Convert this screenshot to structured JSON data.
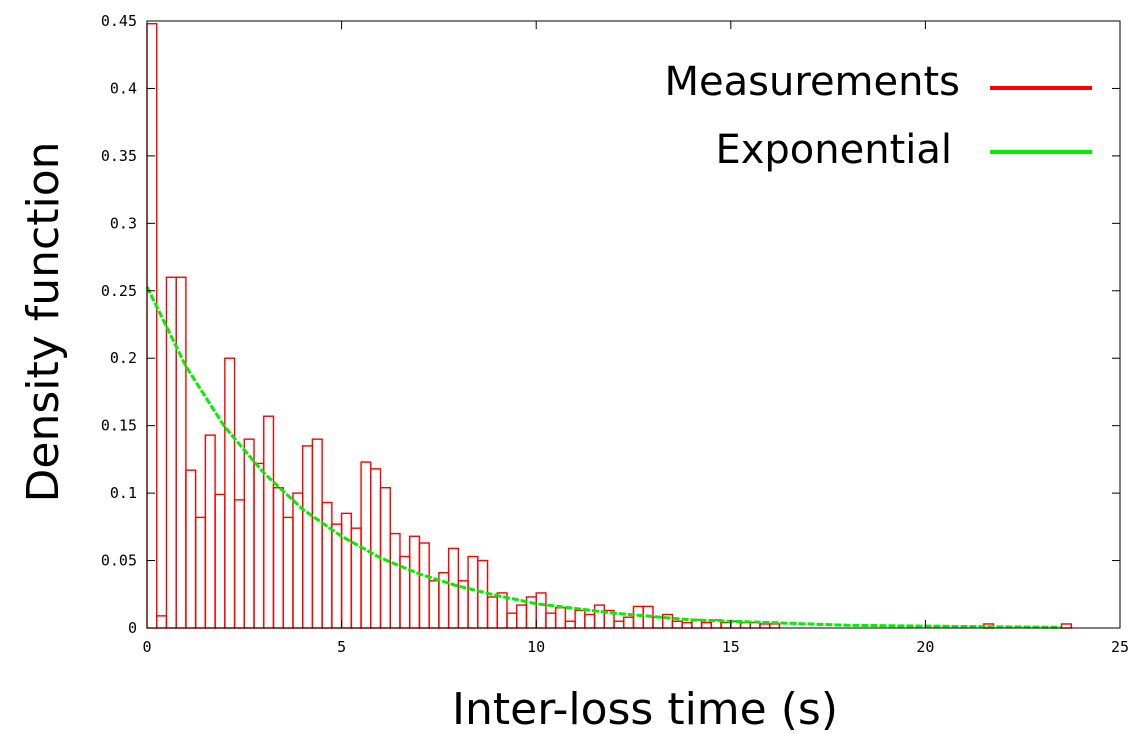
{
  "chart_data": {
    "type": "bar",
    "xlabel": "Inter-loss time (s)",
    "ylabel": "Density function",
    "xlim": [
      0,
      25
    ],
    "ylim": [
      0,
      0.45
    ],
    "xticks": [
      0,
      5,
      10,
      15,
      20,
      25
    ],
    "yticks": [
      0,
      0.05,
      0.1,
      0.15,
      0.2,
      0.25,
      0.3,
      0.35,
      0.4,
      0.45
    ],
    "xtick_labels": [
      "0",
      "5",
      "10",
      "15",
      "20",
      "25"
    ],
    "ytick_labels": [
      "0",
      "0.05",
      "0.1",
      "0.15",
      "0.2",
      "0.25",
      "0.3",
      "0.35",
      "0.4",
      "0.45"
    ],
    "grid": false,
    "legend": {
      "placement": "top-right"
    },
    "series": [
      {
        "name": "Measurements",
        "kind": "histogram",
        "color": "#ff0000",
        "bin_width": 0.25,
        "bin_starts": [
          0.0,
          0.25,
          0.5,
          0.75,
          1.0,
          1.25,
          1.5,
          1.75,
          2.0,
          2.25,
          2.5,
          2.75,
          3.0,
          3.25,
          3.5,
          3.75,
          4.0,
          4.25,
          4.5,
          4.75,
          5.0,
          5.25,
          5.5,
          5.75,
          6.0,
          6.25,
          6.5,
          6.75,
          7.0,
          7.25,
          7.5,
          7.75,
          8.0,
          8.25,
          8.5,
          8.75,
          9.0,
          9.25,
          9.5,
          9.75,
          10.0,
          10.25,
          10.5,
          10.75,
          11.0,
          11.25,
          11.5,
          11.75,
          12.0,
          12.25,
          12.5,
          12.75,
          13.0,
          13.25,
          13.5,
          13.75,
          14.0,
          14.25,
          14.5,
          14.75,
          15.0,
          15.25,
          15.5,
          15.75,
          16.0,
          21.5,
          23.5
        ],
        "values": [
          0.448,
          0.009,
          0.26,
          0.26,
          0.117,
          0.082,
          0.143,
          0.099,
          0.2,
          0.095,
          0.14,
          0.122,
          0.157,
          0.104,
          0.082,
          0.1,
          0.135,
          0.14,
          0.093,
          0.077,
          0.085,
          0.074,
          0.123,
          0.118,
          0.104,
          0.07,
          0.053,
          0.068,
          0.063,
          0.035,
          0.041,
          0.059,
          0.035,
          0.053,
          0.05,
          0.023,
          0.026,
          0.011,
          0.017,
          0.023,
          0.026,
          0.011,
          0.015,
          0.005,
          0.013,
          0.01,
          0.017,
          0.013,
          0.005,
          0.008,
          0.016,
          0.016,
          0.008,
          0.01,
          0.005,
          0.004,
          0.006,
          0.004,
          0.006,
          0.004,
          0.005,
          0.004,
          0.004,
          0.003,
          0.003,
          0.003,
          0.003
        ]
      },
      {
        "name": "Exponential",
        "kind": "line",
        "color": "#00ee00",
        "x": [
          0,
          1,
          2,
          3,
          4,
          5,
          6,
          7,
          8,
          9,
          10,
          12,
          14,
          16,
          18,
          20,
          22,
          23.5
        ],
        "values": [
          0.253,
          0.194,
          0.149,
          0.115,
          0.088,
          0.068,
          0.052,
          0.04,
          0.031,
          0.024,
          0.018,
          0.011,
          0.006,
          0.004,
          0.002,
          0.0014,
          0.0008,
          0.0005
        ]
      }
    ]
  }
}
